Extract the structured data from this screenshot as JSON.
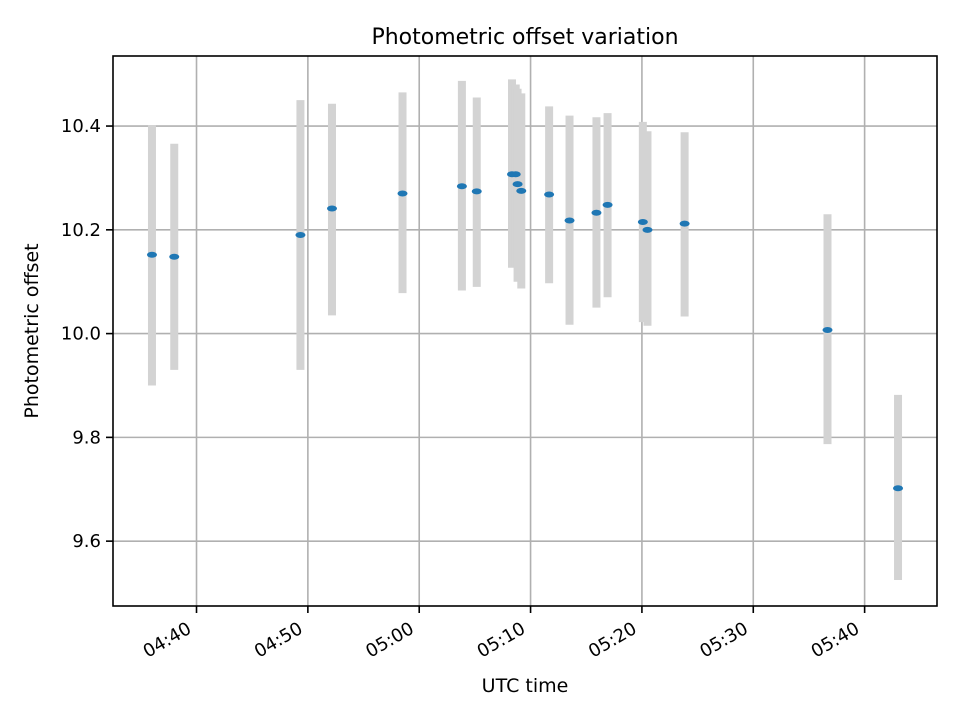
{
  "chart_data": {
    "type": "scatter",
    "title": "Photometric offset variation",
    "xlabel": "UTC time",
    "ylabel": "Photometric offset",
    "x_ticks": [
      "04:40",
      "04:50",
      "05:00",
      "05:10",
      "05:20",
      "05:30",
      "05:40"
    ],
    "y_ticks": [
      "9.6",
      "9.8",
      "10.0",
      "10.2",
      "10.4"
    ],
    "xlim": [
      "04:32:30",
      "05:46:30"
    ],
    "ylim": [
      9.475,
      10.535
    ],
    "grid": true,
    "colors": {
      "marker": "#1f77b4",
      "errorbar": "#d3d3d3",
      "grid": "#b0b0b0"
    },
    "points": [
      {
        "t": "04:36:00",
        "y": 10.152,
        "lo": 9.9,
        "hi": 10.402
      },
      {
        "t": "04:38:00",
        "y": 10.148,
        "lo": 9.93,
        "hi": 10.366
      },
      {
        "t": "04:49:20",
        "y": 10.19,
        "lo": 9.93,
        "hi": 10.45
      },
      {
        "t": "04:52:10",
        "y": 10.241,
        "lo": 10.035,
        "hi": 10.443
      },
      {
        "t": "04:58:30",
        "y": 10.27,
        "lo": 10.078,
        "hi": 10.465
      },
      {
        "t": "05:03:50",
        "y": 10.284,
        "lo": 10.083,
        "hi": 10.487
      },
      {
        "t": "05:05:10",
        "y": 10.274,
        "lo": 10.09,
        "hi": 10.455
      },
      {
        "t": "05:08:20",
        "y": 10.307,
        "lo": 10.127,
        "hi": 10.49
      },
      {
        "t": "05:08:40",
        "y": 10.307,
        "lo": 10.13,
        "hi": 10.48
      },
      {
        "t": "05:08:50",
        "y": 10.288,
        "lo": 10.1,
        "hi": 10.472
      },
      {
        "t": "05:09:10",
        "y": 10.275,
        "lo": 10.087,
        "hi": 10.463
      },
      {
        "t": "05:11:40",
        "y": 10.268,
        "lo": 10.097,
        "hi": 10.438
      },
      {
        "t": "05:13:30",
        "y": 10.218,
        "lo": 10.017,
        "hi": 10.42
      },
      {
        "t": "05:15:55",
        "y": 10.233,
        "lo": 10.05,
        "hi": 10.417
      },
      {
        "t": "05:16:55",
        "y": 10.248,
        "lo": 10.07,
        "hi": 10.425
      },
      {
        "t": "05:20:05",
        "y": 10.215,
        "lo": 10.022,
        "hi": 10.408
      },
      {
        "t": "05:20:30",
        "y": 10.2,
        "lo": 10.015,
        "hi": 10.39
      },
      {
        "t": "05:23:50",
        "y": 10.212,
        "lo": 10.033,
        "hi": 10.388
      },
      {
        "t": "05:36:40",
        "y": 10.007,
        "lo": 9.787,
        "hi": 10.23
      },
      {
        "t": "05:43:00",
        "y": 9.702,
        "lo": 9.525,
        "hi": 9.882
      }
    ]
  }
}
